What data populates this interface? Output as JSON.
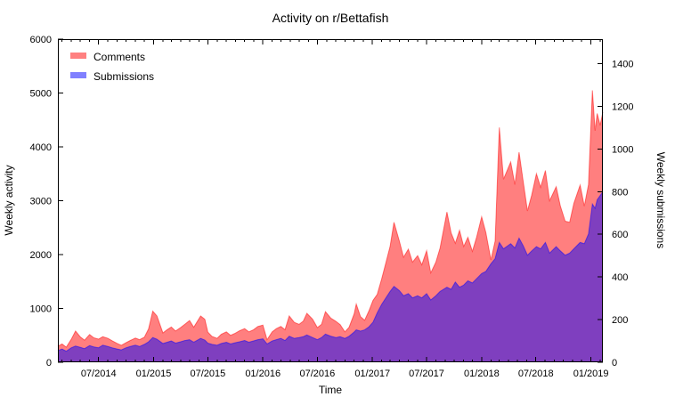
{
  "title": "Activity on r/Bettafish",
  "legend": [
    {
      "label": "Comments",
      "color": "#ff0000",
      "rendered_color": "#ff8080"
    },
    {
      "label": "Submissions",
      "color": "#0000ff",
      "rendered_color": "#8080ff"
    }
  ],
  "colors": {
    "comments_fill_base": "#ff0000",
    "submissions_fill_base": "#0000ff",
    "fill_opacity": 0.5,
    "comments_on_white": "#ff8080",
    "submissions_on_white": "#8080ff",
    "overlap_purple": "#8040bf",
    "axis": "#000000",
    "background": "#ffffff"
  },
  "axes": {
    "x": {
      "label": "Time",
      "tick_labels": [
        "07/2014",
        "01/2015",
        "07/2015",
        "01/2016",
        "07/2016",
        "01/2017",
        "07/2017",
        "01/2018",
        "07/2018",
        "01/2019"
      ],
      "ticks": [
        {
          "label": "07/2014",
          "date": "2014-07-01"
        },
        {
          "label": "01/2015",
          "date": "2015-01-01"
        },
        {
          "label": "07/2015",
          "date": "2015-07-01"
        },
        {
          "label": "01/2016",
          "date": "2016-01-01"
        },
        {
          "label": "07/2016",
          "date": "2016-07-01"
        },
        {
          "label": "01/2017",
          "date": "2017-01-01"
        },
        {
          "label": "07/2017",
          "date": "2017-07-01"
        },
        {
          "label": "01/2018",
          "date": "2018-01-01"
        },
        {
          "label": "07/2018",
          "date": "2018-07-01"
        },
        {
          "label": "01/2019",
          "date": "2019-01-01"
        }
      ],
      "minor_ticks": "monthly"
    },
    "y_left": {
      "label": "Weekly activity",
      "tick_labels": [
        "0",
        "1000",
        "2000",
        "3000",
        "4000",
        "5000",
        "6000"
      ],
      "tick_values": [
        0,
        1000,
        2000,
        3000,
        4000,
        5000,
        6000
      ],
      "range": [
        0,
        6000
      ]
    },
    "y_right": {
      "label": "Weekly submissions",
      "tick_labels": [
        "0",
        "200",
        "400",
        "600",
        "800",
        "1000",
        "1200",
        "1400"
      ],
      "tick_values": [
        0,
        200,
        400,
        600,
        800,
        1000,
        1200,
        1400
      ],
      "range": [
        0,
        1515
      ]
    }
  },
  "chart_data": {
    "type": "area",
    "title": "Activity on r/Bettafish",
    "xlabel": "Time",
    "ylabel": "Weekly activity",
    "y2label": "Weekly submissions",
    "ylim": [
      0,
      6000
    ],
    "y2lim": [
      0,
      1515
    ],
    "x_range": [
      "2014-02-15",
      "2019-02-10"
    ],
    "grid": false,
    "legend_position": "top-left",
    "x": [
      "2014-02-15",
      "2014-03-01",
      "2014-03-15",
      "2014-04-01",
      "2014-04-15",
      "2014-05-01",
      "2014-05-15",
      "2014-06-01",
      "2014-06-15",
      "2014-07-01",
      "2014-07-15",
      "2014-08-01",
      "2014-08-15",
      "2014-09-01",
      "2014-09-15",
      "2014-10-01",
      "2014-10-15",
      "2014-11-01",
      "2014-11-15",
      "2014-12-01",
      "2014-12-15",
      "2014-12-29",
      "2015-01-12",
      "2015-02-01",
      "2015-02-15",
      "2015-03-01",
      "2015-03-15",
      "2015-04-01",
      "2015-04-15",
      "2015-05-01",
      "2015-05-15",
      "2015-06-07",
      "2015-06-21",
      "2015-07-01",
      "2015-07-15",
      "2015-08-01",
      "2015-08-15",
      "2015-09-01",
      "2015-09-15",
      "2015-10-01",
      "2015-10-15",
      "2015-11-01",
      "2015-11-15",
      "2015-12-01",
      "2015-12-15",
      "2016-01-01",
      "2016-01-15",
      "2016-02-01",
      "2016-02-15",
      "2016-03-01",
      "2016-03-15",
      "2016-03-29",
      "2016-04-15",
      "2016-05-01",
      "2016-05-15",
      "2016-05-27",
      "2016-06-15",
      "2016-07-01",
      "2016-07-15",
      "2016-07-28",
      "2016-08-15",
      "2016-09-01",
      "2016-09-15",
      "2016-10-01",
      "2016-10-15",
      "2016-11-01",
      "2016-11-08",
      "2016-11-22",
      "2016-12-06",
      "2016-12-20",
      "2017-01-03",
      "2017-01-17",
      "2017-02-01",
      "2017-02-15",
      "2017-03-01",
      "2017-03-14",
      "2017-04-01",
      "2017-04-15",
      "2017-05-01",
      "2017-05-15",
      "2017-06-01",
      "2017-06-15",
      "2017-07-01",
      "2017-07-15",
      "2017-08-01",
      "2017-08-15",
      "2017-09-07",
      "2017-09-21",
      "2017-10-05",
      "2017-10-19",
      "2017-11-02",
      "2017-11-16",
      "2017-12-01",
      "2017-12-15",
      "2018-01-01",
      "2018-01-15",
      "2018-02-01",
      "2018-02-15",
      "2018-03-01",
      "2018-03-15",
      "2018-04-08",
      "2018-04-22",
      "2018-05-06",
      "2018-05-20",
      "2018-06-03",
      "2018-06-17",
      "2018-07-03",
      "2018-07-17",
      "2018-08-02",
      "2018-08-16",
      "2018-09-07",
      "2018-09-21",
      "2018-10-07",
      "2018-10-22",
      "2018-11-05",
      "2018-11-26",
      "2018-12-10",
      "2018-12-24",
      "2019-01-06",
      "2019-01-15",
      "2019-01-22",
      "2019-02-01",
      "2019-02-10"
    ],
    "series": [
      {
        "name": "Comments",
        "axis": "left",
        "color": "#ff0000",
        "fill_opacity": 0.5,
        "values": [
          300,
          340,
          280,
          430,
          580,
          470,
          410,
          515,
          455,
          430,
          475,
          445,
          400,
          350,
          315,
          365,
          405,
          450,
          420,
          465,
          620,
          950,
          860,
          545,
          605,
          655,
          580,
          645,
          705,
          775,
          650,
          860,
          800,
          560,
          480,
          445,
          520,
          565,
          500,
          540,
          585,
          625,
          565,
          605,
          665,
          690,
          420,
          565,
          625,
          665,
          605,
          860,
          740,
          705,
          765,
          910,
          800,
          645,
          705,
          940,
          820,
          760,
          700,
          565,
          650,
          900,
          1080,
          850,
          780,
          950,
          1150,
          1260,
          1550,
          1850,
          2150,
          2600,
          2250,
          1950,
          2100,
          1860,
          1980,
          1810,
          2070,
          1660,
          1860,
          2120,
          2790,
          2400,
          2210,
          2450,
          2150,
          2320,
          2060,
          2320,
          2700,
          2410,
          1900,
          2250,
          4360,
          3400,
          3720,
          3300,
          3900,
          3350,
          2810,
          3100,
          3500,
          3250,
          3560,
          3000,
          3260,
          2900,
          2620,
          2600,
          2950,
          3290,
          2900,
          3300,
          5050,
          4300,
          4620,
          4400,
          4650
        ]
      },
      {
        "name": "Submissions",
        "axis": "right",
        "color": "#0000ff",
        "fill_opacity": 0.5,
        "values": [
          55,
          62,
          52,
          68,
          76,
          70,
          64,
          78,
          72,
          68,
          80,
          74,
          68,
          62,
          58,
          68,
          74,
          80,
          74,
          84,
          96,
          116,
          108,
          88,
          94,
          100,
          90,
          96,
          102,
          106,
          94,
          112,
          104,
          90,
          84,
          80,
          88,
          94,
          86,
          92,
          96,
          102,
          94,
          100,
          106,
          110,
          86,
          100,
          106,
          112,
          102,
          122,
          112,
          116,
          120,
          128,
          116,
          106,
          116,
          132,
          122,
          116,
          120,
          112,
          122,
          142,
          152,
          146,
          152,
          166,
          188,
          232,
          272,
          302,
          332,
          356,
          336,
          312,
          322,
          302,
          312,
          302,
          322,
          292,
          312,
          332,
          352,
          342,
          376,
          352,
          362,
          382,
          372,
          392,
          416,
          426,
          462,
          486,
          562,
          532,
          556,
          536,
          582,
          546,
          502,
          522,
          542,
          532,
          562,
          512,
          542,
          522,
          502,
          512,
          532,
          562,
          556,
          602,
          742,
          722,
          762,
          782,
          800
        ]
      }
    ]
  }
}
